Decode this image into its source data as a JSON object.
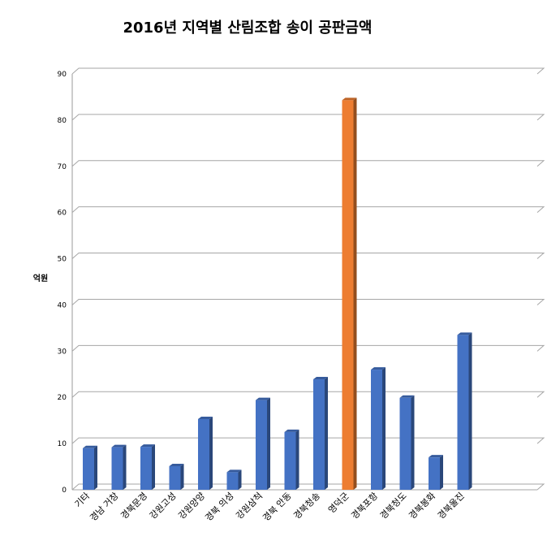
{
  "chart_data": {
    "type": "bar",
    "title": "2016년 지역별 산림조합 송이 공판금액",
    "ylabel": "억원",
    "xlabel": "",
    "ylim": [
      0,
      90
    ],
    "yticks": [
      0,
      10,
      20,
      30,
      40,
      50,
      60,
      70,
      80,
      90
    ],
    "grid": true,
    "legend": "none",
    "categories": [
      "기타",
      "경남 거창",
      "경북문경",
      "강원고성",
      "강원양양",
      "경북 의성",
      "강원삼척",
      "경북 안동",
      "경북청송",
      "영덕군",
      "경북포항",
      "경북청도",
      "경북봉화",
      "경북울진"
    ],
    "values": [
      9,
      9.2,
      9.3,
      5.1,
      15.3,
      3.8,
      19.4,
      12.5,
      23.9,
      84.3,
      26,
      19.9,
      7,
      33.5
    ],
    "colors": [
      "#4472c4",
      "#4472c4",
      "#4472c4",
      "#4472c4",
      "#4472c4",
      "#4472c4",
      "#4472c4",
      "#4472c4",
      "#4472c4",
      "#ed7d31",
      "#4472c4",
      "#4472c4",
      "#4472c4",
      "#4472c4"
    ],
    "bar_color": "#4472c4",
    "highlight_color": "#ed7d31"
  }
}
